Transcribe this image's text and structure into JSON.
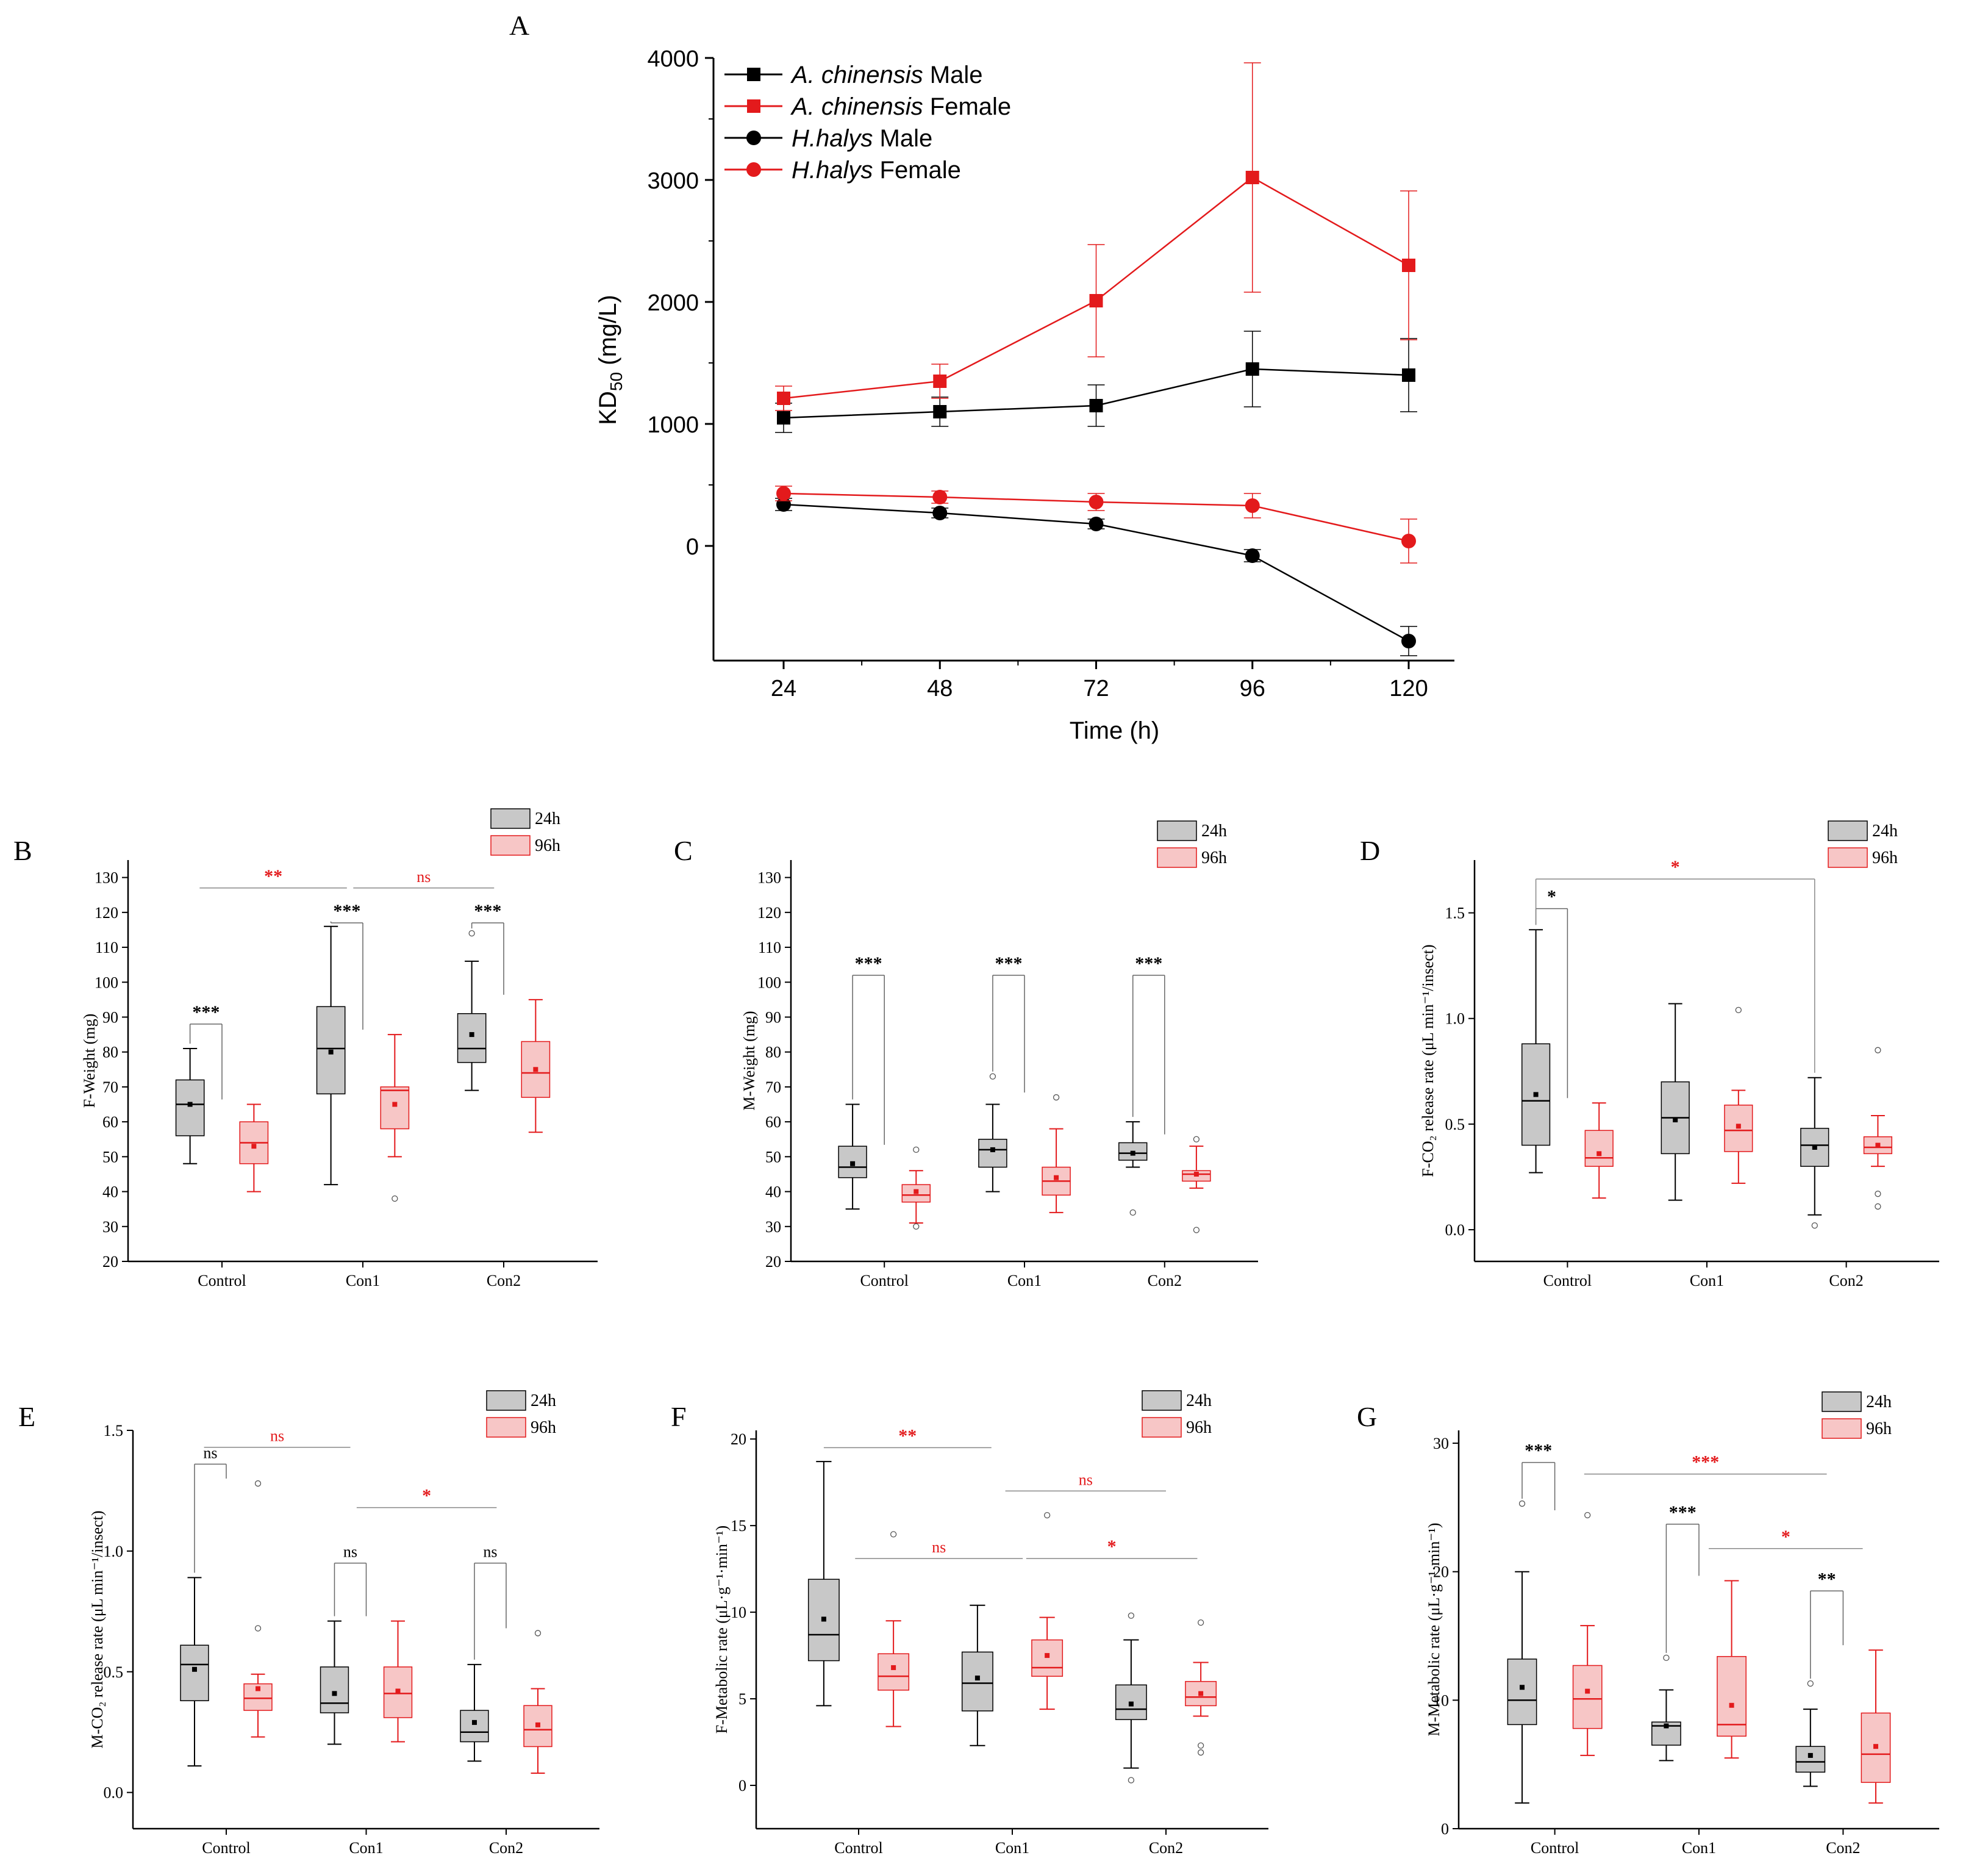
{
  "colors": {
    "black": "#000000",
    "red": "#e31a1c",
    "gray_fill": "#c8c8c8",
    "pink_fill": "#f7c6c6",
    "red_text": "#e31a1c"
  },
  "chart_data": [
    {
      "id": "A",
      "panel_label": "A",
      "type": "line",
      "xlabel": "Time (h)",
      "ylabel_main": "KD",
      "ylabel_sub": "50",
      "ylabel_unit": " (mg/L)",
      "x": [
        24,
        48,
        72,
        96,
        120
      ],
      "x_tick_labels": [
        "24",
        "48",
        "72",
        "96",
        "120"
      ],
      "y_ticks": [
        0,
        1000,
        2000,
        3000,
        4000
      ],
      "y_tick_labels": [
        "0",
        "1000",
        "2000",
        "3000",
        "4000"
      ],
      "ylim": [
        -950,
        4000
      ],
      "series": [
        {
          "key": "acm",
          "species": "A. chinensis",
          "sex": " Male",
          "color": "#000000",
          "marker": "square",
          "values": [
            1050,
            1100,
            1150,
            1450,
            1400
          ],
          "errors": [
            120,
            120,
            170,
            310,
            300
          ]
        },
        {
          "key": "acf",
          "species": "A. chinensis",
          "sex": " Female",
          "color": "#e31a1c",
          "marker": "square",
          "values": [
            1210,
            1350,
            2010,
            3020,
            2300
          ],
          "errors": [
            100,
            140,
            460,
            940,
            610
          ]
        },
        {
          "key": "hhm",
          "species": "H.halys",
          "sex": " Male",
          "color": "#000000",
          "marker": "circle",
          "values": [
            340,
            270,
            180,
            -80,
            -780
          ],
          "errors": [
            50,
            40,
            40,
            50,
            120
          ]
        },
        {
          "key": "hhf",
          "species": "H.halys",
          "sex": " Female",
          "color": "#e31a1c",
          "marker": "circle",
          "values": [
            430,
            400,
            360,
            330,
            40
          ],
          "errors": [
            60,
            50,
            70,
            100,
            180
          ]
        }
      ]
    },
    {
      "id": "B",
      "panel_label": "B",
      "type": "box",
      "ylabel": "F-Weight (mg)",
      "ylim": [
        20,
        135
      ],
      "y_ticks": [
        20,
        30,
        40,
        50,
        60,
        70,
        80,
        90,
        100,
        110,
        120,
        130
      ],
      "y_tick_labels": [
        "20",
        "30",
        "40",
        "50",
        "60",
        "70",
        "80",
        "90",
        "100",
        "110",
        "120",
        "130"
      ],
      "categories": [
        "Control",
        "Con1",
        "Con2"
      ],
      "legend": [
        "24h",
        "96h"
      ],
      "boxes": [
        {
          "min": 48,
          "q1": 56,
          "median": 65,
          "q3": 72,
          "max": 81,
          "mean": 65,
          "outliers": []
        },
        {
          "min": 40,
          "q1": 48,
          "median": 54,
          "q3": 60,
          "max": 65,
          "mean": 53,
          "outliers": []
        },
        {
          "min": 42,
          "q1": 68,
          "median": 81,
          "q3": 93,
          "max": 116,
          "mean": 80,
          "outliers": []
        },
        {
          "min": 50,
          "q1": 58,
          "median": 69,
          "q3": 70,
          "max": 85,
          "mean": 65,
          "outliers": [
            38
          ]
        },
        {
          "min": 69,
          "q1": 77,
          "median": 81,
          "q3": 91,
          "max": 106,
          "mean": 85,
          "outliers": [
            114
          ]
        },
        {
          "min": 57,
          "q1": 67,
          "median": 74,
          "q3": 83,
          "max": 95,
          "mean": 75,
          "outliers": []
        }
      ],
      "brackets": [
        {
          "from": 0,
          "to": 1,
          "y": 88,
          "label": "***",
          "color": "#000000",
          "drop": true
        },
        {
          "from": 2,
          "to": 3,
          "y": 117,
          "label": "***",
          "color": "#000000",
          "drop": true
        },
        {
          "from": 4,
          "to": 5,
          "y": 117,
          "label": "***",
          "color": "#000000",
          "drop": true
        },
        {
          "from": 0.3,
          "to": 2.5,
          "y": 127,
          "label": "**",
          "color": "#e31a1c",
          "drop": false
        },
        {
          "from": 2.7,
          "to": 4.7,
          "y": 127,
          "label": "ns",
          "color": "#e31a1c",
          "drop": false
        }
      ]
    },
    {
      "id": "C",
      "panel_label": "C",
      "type": "box",
      "ylabel": "M-Weight (mg)",
      "ylim": [
        20,
        135
      ],
      "y_ticks": [
        20,
        30,
        40,
        50,
        60,
        70,
        80,
        90,
        100,
        110,
        120,
        130
      ],
      "y_tick_labels": [
        "20",
        "30",
        "40",
        "50",
        "60",
        "70",
        "80",
        "90",
        "100",
        "110",
        "120",
        "130"
      ],
      "categories": [
        "Control",
        "Con1",
        "Con2"
      ],
      "legend": [
        "24h",
        "96h"
      ],
      "boxes": [
        {
          "min": 35,
          "q1": 44,
          "median": 47,
          "q3": 53,
          "max": 65,
          "mean": 48,
          "outliers": []
        },
        {
          "min": 31,
          "q1": 37,
          "median": 39,
          "q3": 42,
          "max": 46,
          "mean": 40,
          "outliers": [
            52,
            30
          ]
        },
        {
          "min": 40,
          "q1": 47,
          "median": 52,
          "q3": 55,
          "max": 65,
          "mean": 52,
          "outliers": [
            73
          ]
        },
        {
          "min": 34,
          "q1": 39,
          "median": 43,
          "q3": 47,
          "max": 58,
          "mean": 44,
          "outliers": [
            67
          ]
        },
        {
          "min": 47,
          "q1": 49,
          "median": 51,
          "q3": 54,
          "max": 60,
          "mean": 51,
          "outliers": [
            34
          ]
        },
        {
          "min": 41,
          "q1": 43,
          "median": 45,
          "q3": 46,
          "max": 53,
          "mean": 45,
          "outliers": [
            55,
            29
          ]
        }
      ],
      "brackets": [
        {
          "from": 0,
          "to": 1,
          "y": 102,
          "label": "***",
          "color": "#000000",
          "drop": true
        },
        {
          "from": 2,
          "to": 3,
          "y": 102,
          "label": "***",
          "color": "#000000",
          "drop": true
        },
        {
          "from": 4,
          "to": 5,
          "y": 102,
          "label": "***",
          "color": "#000000",
          "drop": true
        }
      ]
    },
    {
      "id": "D",
      "panel_label": "D",
      "type": "box",
      "ylabel": "F-CO₂ release rate (μL min⁻¹/insect)",
      "ylim": [
        -0.15,
        1.75
      ],
      "y_ticks": [
        0,
        0.5,
        1.0,
        1.5
      ],
      "y_tick_labels": [
        "0.0",
        "0.5",
        "1.0",
        "1.5"
      ],
      "categories": [
        "Control",
        "Con1",
        "Con2"
      ],
      "legend": [
        "24h",
        "96h"
      ],
      "boxes": [
        {
          "min": 0.27,
          "q1": 0.4,
          "median": 0.61,
          "q3": 0.88,
          "max": 1.42,
          "mean": 0.64,
          "outliers": []
        },
        {
          "min": 0.15,
          "q1": 0.3,
          "median": 0.34,
          "q3": 0.47,
          "max": 0.6,
          "mean": 0.36,
          "outliers": []
        },
        {
          "min": 0.14,
          "q1": 0.36,
          "median": 0.53,
          "q3": 0.7,
          "max": 1.07,
          "mean": 0.52,
          "outliers": []
        },
        {
          "min": 0.22,
          "q1": 0.37,
          "median": 0.47,
          "q3": 0.59,
          "max": 0.66,
          "mean": 0.49,
          "outliers": [
            1.04
          ]
        },
        {
          "min": 0.07,
          "q1": 0.3,
          "median": 0.4,
          "q3": 0.48,
          "max": 0.72,
          "mean": 0.39,
          "outliers": [
            0.02
          ]
        },
        {
          "min": 0.3,
          "q1": 0.36,
          "median": 0.39,
          "q3": 0.44,
          "max": 0.54,
          "mean": 0.4,
          "outliers": [
            0.85,
            0.17,
            0.11
          ]
        }
      ],
      "brackets": [
        {
          "from": 0,
          "to": 1,
          "y": 1.52,
          "label": "*",
          "color": "#000000",
          "drop": true
        },
        {
          "from": 0,
          "to": 4,
          "y": 1.66,
          "label": "*",
          "color": "#e31a1c",
          "drop": true
        }
      ]
    },
    {
      "id": "E",
      "panel_label": "E",
      "type": "box",
      "ylabel": "M-CO₂ release rate (μL min⁻¹/insect)",
      "ylim": [
        -0.15,
        1.5
      ],
      "y_ticks": [
        0,
        0.5,
        1.0,
        1.5
      ],
      "y_tick_labels": [
        "0.0",
        "0.5",
        "1.0",
        "1.5"
      ],
      "categories": [
        "Control",
        "Con1",
        "Con2"
      ],
      "legend": [
        "24h",
        "96h"
      ],
      "boxes": [
        {
          "min": 0.11,
          "q1": 0.38,
          "median": 0.53,
          "q3": 0.61,
          "max": 0.89,
          "mean": 0.51,
          "outliers": []
        },
        {
          "min": 0.23,
          "q1": 0.34,
          "median": 0.39,
          "q3": 0.45,
          "max": 0.49,
          "mean": 0.43,
          "outliers": [
            1.28,
            0.68
          ]
        },
        {
          "min": 0.2,
          "q1": 0.33,
          "median": 0.37,
          "q3": 0.52,
          "max": 0.71,
          "mean": 0.41,
          "outliers": []
        },
        {
          "min": 0.21,
          "q1": 0.31,
          "median": 0.41,
          "q3": 0.52,
          "max": 0.71,
          "mean": 0.42,
          "outliers": []
        },
        {
          "min": 0.13,
          "q1": 0.21,
          "median": 0.25,
          "q3": 0.34,
          "max": 0.53,
          "mean": 0.29,
          "outliers": []
        },
        {
          "min": 0.08,
          "q1": 0.19,
          "median": 0.26,
          "q3": 0.36,
          "max": 0.43,
          "mean": 0.28,
          "outliers": [
            0.66
          ]
        }
      ],
      "brackets": [
        {
          "from": 0,
          "to": 1,
          "y": 1.36,
          "label": "ns",
          "color": "#000000",
          "drop": true
        },
        {
          "from": 0.3,
          "to": 2.5,
          "y": 1.43,
          "label": "ns",
          "color": "#e31a1c",
          "drop": false
        },
        {
          "from": 2,
          "to": 3,
          "y": 0.95,
          "label": "ns",
          "color": "#000000",
          "drop": true
        },
        {
          "from": 4,
          "to": 5,
          "y": 0.95,
          "label": "ns",
          "color": "#000000",
          "drop": true
        },
        {
          "from": 2.7,
          "to": 4.7,
          "y": 1.18,
          "label": "*",
          "color": "#e31a1c",
          "drop": false
        }
      ]
    },
    {
      "id": "F",
      "panel_label": "F",
      "type": "box",
      "ylabel": "F-Metabolic rate (μL·g⁻¹·min⁻¹)",
      "ylim": [
        -2.5,
        20.5
      ],
      "y_ticks": [
        0,
        5,
        10,
        15,
        20
      ],
      "y_tick_labels": [
        "0",
        "5",
        "10",
        "15",
        "20"
      ],
      "categories": [
        "Control",
        "Con1",
        "Con2"
      ],
      "legend": [
        "24h",
        "96h"
      ],
      "boxes": [
        {
          "min": 4.6,
          "q1": 7.2,
          "median": 8.7,
          "q3": 11.9,
          "max": 18.7,
          "mean": 9.6,
          "outliers": []
        },
        {
          "min": 3.4,
          "q1": 5.5,
          "median": 6.3,
          "q3": 7.6,
          "max": 9.5,
          "mean": 6.8,
          "outliers": [
            14.5
          ]
        },
        {
          "min": 2.3,
          "q1": 4.3,
          "median": 5.9,
          "q3": 7.7,
          "max": 10.4,
          "mean": 6.2,
          "outliers": []
        },
        {
          "min": 4.4,
          "q1": 6.3,
          "median": 6.8,
          "q3": 8.4,
          "max": 9.7,
          "mean": 7.5,
          "outliers": [
            15.6
          ]
        },
        {
          "min": 1.0,
          "q1": 3.8,
          "median": 4.4,
          "q3": 5.8,
          "max": 8.4,
          "mean": 4.7,
          "outliers": [
            9.8,
            0.3
          ]
        },
        {
          "min": 4.0,
          "q1": 4.6,
          "median": 5.1,
          "q3": 6.0,
          "max": 7.1,
          "mean": 5.3,
          "outliers": [
            9.4,
            2.3,
            1.9
          ]
        }
      ],
      "brackets": [
        {
          "from": 0,
          "to": 2.4,
          "y": 19.5,
          "label": "**",
          "color": "#e31a1c",
          "drop": false
        },
        {
          "from": 2.8,
          "to": 5,
          "y": 17.0,
          "label": "ns",
          "color": "#e31a1c",
          "drop": false
        },
        {
          "from": 0.9,
          "to": 3.3,
          "y": 13.1,
          "label": "ns",
          "color": "#e31a1c",
          "drop": false
        },
        {
          "from": 3.4,
          "to": 5.9,
          "y": 13.1,
          "label": "*",
          "color": "#e31a1c",
          "drop": false
        }
      ]
    },
    {
      "id": "G",
      "panel_label": "G",
      "type": "box",
      "ylabel": "M-Metabolic rate (μL·g⁻¹·min⁻¹)",
      "ylim": [
        0,
        31
      ],
      "y_ticks": [
        0,
        10,
        20,
        30
      ],
      "y_tick_labels": [
        "0",
        "10",
        "20",
        "30"
      ],
      "categories": [
        "Control",
        "Con1",
        "Con2"
      ],
      "legend": [
        "24h",
        "96h"
      ],
      "boxes": [
        {
          "min": 2,
          "q1": 8.1,
          "median": 10.0,
          "q3": 13.2,
          "max": 20.0,
          "mean": 11.0,
          "outliers": [
            25.3
          ]
        },
        {
          "min": 5.7,
          "q1": 7.8,
          "median": 10.1,
          "q3": 12.7,
          "max": 15.8,
          "mean": 10.7,
          "outliers": [
            24.4
          ]
        },
        {
          "min": 5.3,
          "q1": 6.5,
          "median": 8.0,
          "q3": 8.3,
          "max": 10.8,
          "mean": 8.0,
          "outliers": [
            13.3
          ]
        },
        {
          "min": 5.5,
          "q1": 7.2,
          "median": 8.1,
          "q3": 13.4,
          "max": 19.3,
          "mean": 9.6,
          "outliers": []
        },
        {
          "min": 3.3,
          "q1": 4.4,
          "median": 5.2,
          "q3": 6.4,
          "max": 9.3,
          "mean": 5.7,
          "outliers": [
            11.3
          ]
        },
        {
          "min": 2.0,
          "q1": 3.6,
          "median": 5.8,
          "q3": 9.0,
          "max": 13.9,
          "mean": 6.4,
          "outliers": []
        }
      ],
      "brackets": [
        {
          "from": 0,
          "to": 1,
          "y": 28.5,
          "label": "***",
          "color": "#000000",
          "drop": true
        },
        {
          "from": 2,
          "to": 3,
          "y": 23.7,
          "label": "***",
          "color": "#000000",
          "drop": true
        },
        {
          "from": 4,
          "to": 5,
          "y": 18.5,
          "label": "**",
          "color": "#000000",
          "drop": true
        },
        {
          "from": 1.9,
          "to": 4.5,
          "y": 27.6,
          "label": "***",
          "color": "#e31a1c",
          "drop": false
        },
        {
          "from": 3.3,
          "to": 5.6,
          "y": 21.8,
          "label": "*",
          "color": "#e31a1c",
          "drop": false
        }
      ]
    }
  ]
}
